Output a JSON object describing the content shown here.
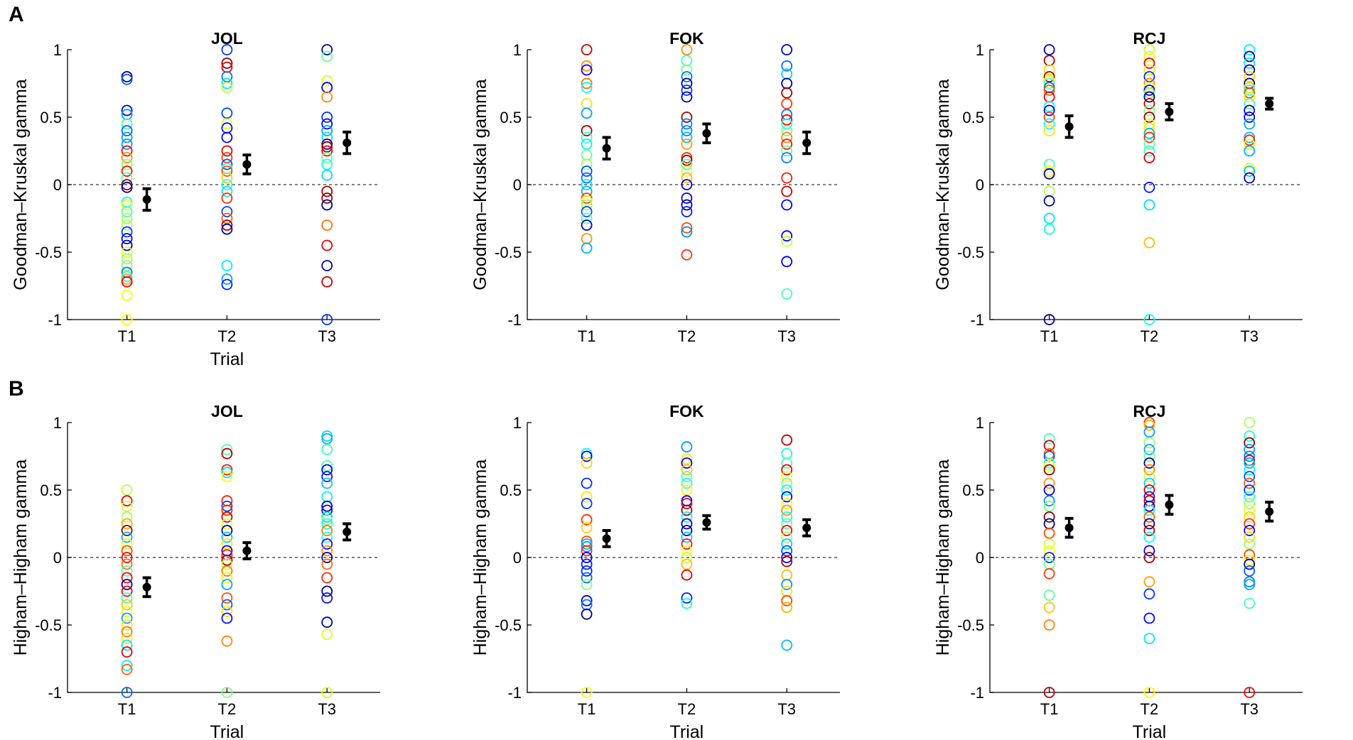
{
  "panels": [
    {
      "letter": "A"
    },
    {
      "letter": "B"
    }
  ],
  "chart_data": [
    {
      "type": "scatter",
      "title": "JOL",
      "xlabel": "Trial",
      "ylabel": "Goodman–Kruskal gamma",
      "categories": [
        "T1",
        "T2",
        "T3"
      ],
      "ylim": [
        -1,
        1
      ],
      "yticks": [
        -1,
        -0.5,
        0,
        0.5,
        1
      ],
      "reference_line": 0,
      "points": [
        [
          0.8,
          0.78,
          0.55,
          0.52,
          0.45,
          0.4,
          0.35,
          0.3,
          0.25,
          0.2,
          0.15,
          0.1,
          0.05,
          0.0,
          -0.02,
          -0.13,
          -0.15,
          -0.2,
          -0.25,
          -0.3,
          -0.35,
          -0.4,
          -0.45,
          -0.5,
          -0.55,
          -0.6,
          -0.65,
          -0.68,
          -0.7,
          -0.72,
          -0.82,
          -1.0
        ],
        [
          1.0,
          0.9,
          0.87,
          0.8,
          0.75,
          0.72,
          0.53,
          0.45,
          0.42,
          0.35,
          0.25,
          0.2,
          0.15,
          0.12,
          0.1,
          0.05,
          0.0,
          -0.05,
          -0.1,
          -0.2,
          -0.25,
          -0.3,
          -0.33,
          -0.6,
          -0.7,
          -0.74
        ],
        [
          1.0,
          0.95,
          0.77,
          0.72,
          0.65,
          0.5,
          0.45,
          0.4,
          0.35,
          0.3,
          0.28,
          0.25,
          0.2,
          0.15,
          0.07,
          -0.05,
          -0.1,
          -0.15,
          -0.3,
          -0.45,
          -0.6,
          -0.72,
          -1.0
        ]
      ],
      "means": [
        -0.11,
        0.15,
        0.31
      ],
      "errors": [
        0.08,
        0.07,
        0.08
      ]
    },
    {
      "type": "scatter",
      "title": "FOK",
      "xlabel": "",
      "ylabel": "Goodman–Kruskal gamma",
      "categories": [
        "T1",
        "T2",
        "T3"
      ],
      "ylim": [
        -1,
        1
      ],
      "yticks": [
        -1,
        -0.5,
        0,
        0.5,
        1
      ],
      "reference_line": 0,
      "points": [
        [
          1.0,
          0.88,
          0.85,
          0.75,
          0.72,
          0.6,
          0.53,
          0.4,
          0.35,
          0.3,
          0.22,
          0.15,
          0.1,
          0.05,
          0.0,
          -0.05,
          -0.1,
          -0.12,
          -0.15,
          -0.2,
          -0.25,
          -0.3,
          -0.4,
          -0.47
        ],
        [
          1.0,
          0.92,
          0.85,
          0.8,
          0.75,
          0.7,
          0.65,
          0.5,
          0.45,
          0.4,
          0.35,
          0.3,
          0.2,
          0.18,
          0.15,
          0.1,
          0.05,
          0.0,
          -0.1,
          -0.15,
          -0.2,
          -0.32,
          -0.35,
          -0.52
        ],
        [
          1.0,
          0.88,
          0.82,
          0.75,
          0.68,
          0.6,
          0.52,
          0.48,
          0.45,
          0.4,
          0.35,
          0.3,
          0.25,
          0.2,
          0.05,
          -0.05,
          -0.15,
          -0.38,
          -0.42,
          -0.57,
          -0.81
        ]
      ],
      "means": [
        0.27,
        0.38,
        0.31
      ],
      "errors": [
        0.08,
        0.07,
        0.08
      ]
    },
    {
      "type": "scatter",
      "title": "RCJ",
      "xlabel": "",
      "ylabel": "Goodman–Kruskal gamma",
      "categories": [
        "T1",
        "T2",
        "T3"
      ],
      "ylim": [
        -1,
        1
      ],
      "yticks": [
        -1,
        -0.5,
        0,
        0.5,
        1
      ],
      "reference_line": 0,
      "points": [
        [
          1.0,
          0.92,
          0.85,
          0.8,
          0.77,
          0.75,
          0.72,
          0.7,
          0.65,
          0.58,
          0.55,
          0.5,
          0.45,
          0.4,
          0.15,
          0.1,
          0.08,
          -0.05,
          -0.12,
          -0.25,
          -0.33,
          -1.0
        ],
        [
          1.0,
          0.95,
          0.9,
          0.85,
          0.8,
          0.75,
          0.72,
          0.7,
          0.68,
          0.65,
          0.6,
          0.55,
          0.5,
          0.45,
          0.42,
          0.38,
          0.35,
          0.3,
          0.25,
          0.2,
          -0.02,
          -0.15,
          -0.43,
          -1.0
        ],
        [
          1.0,
          0.95,
          0.9,
          0.85,
          0.8,
          0.75,
          0.72,
          0.7,
          0.68,
          0.65,
          0.6,
          0.55,
          0.5,
          0.45,
          0.35,
          0.33,
          0.3,
          0.25,
          0.12,
          0.1,
          0.05
        ]
      ],
      "means": [
        0.43,
        0.54,
        0.6
      ],
      "errors": [
        0.08,
        0.06,
        0.04
      ]
    },
    {
      "type": "scatter",
      "title": "JOL",
      "xlabel": "Trial",
      "ylabel": "Higham–Higham gamma",
      "categories": [
        "T1",
        "T2",
        "T3"
      ],
      "ylim": [
        -1,
        1
      ],
      "yticks": [
        -1,
        -0.5,
        0,
        0.5,
        1
      ],
      "reference_line": 0,
      "points": [
        [
          0.5,
          0.42,
          0.38,
          0.3,
          0.25,
          0.2,
          0.15,
          0.1,
          0.05,
          0.0,
          -0.05,
          -0.1,
          -0.15,
          -0.2,
          -0.25,
          -0.3,
          -0.35,
          -0.4,
          -0.45,
          -0.5,
          -0.55,
          -0.6,
          -0.65,
          -0.7,
          -0.8,
          -0.83,
          -1.0
        ],
        [
          0.8,
          0.77,
          0.65,
          0.63,
          0.6,
          0.42,
          0.38,
          0.35,
          0.3,
          0.25,
          0.2,
          0.15,
          0.1,
          0.05,
          0.02,
          -0.02,
          -0.05,
          -0.1,
          -0.15,
          -0.2,
          -0.3,
          -0.35,
          -0.4,
          -0.45,
          -0.62,
          -1.0
        ],
        [
          0.9,
          0.88,
          0.8,
          0.68,
          0.65,
          0.6,
          0.55,
          0.45,
          0.38,
          0.35,
          0.3,
          0.28,
          0.25,
          0.2,
          0.15,
          0.1,
          0.05,
          0.0,
          -0.05,
          -0.15,
          -0.25,
          -0.3,
          -0.48,
          -0.57,
          -1.0
        ]
      ],
      "means": [
        -0.22,
        0.05,
        0.19
      ],
      "errors": [
        0.07,
        0.06,
        0.06
      ]
    },
    {
      "type": "scatter",
      "title": "FOK",
      "xlabel": "Trial",
      "ylabel": "Higham–Higham gamma",
      "categories": [
        "T1",
        "T2",
        "T3"
      ],
      "ylim": [
        -1,
        1
      ],
      "yticks": [
        -1,
        -0.5,
        0,
        0.5,
        1
      ],
      "reference_line": 0,
      "points": [
        [
          0.77,
          0.75,
          0.7,
          0.55,
          0.45,
          0.4,
          0.28,
          0.22,
          0.12,
          0.1,
          0.08,
          0.05,
          0.0,
          -0.05,
          -0.1,
          -0.15,
          -0.2,
          -0.32,
          -0.35,
          -0.42,
          -1.0
        ],
        [
          0.82,
          0.73,
          0.7,
          0.65,
          0.6,
          0.55,
          0.5,
          0.42,
          0.4,
          0.35,
          0.3,
          0.25,
          0.2,
          0.15,
          0.1,
          0.05,
          0.0,
          -0.05,
          -0.13,
          -0.3,
          -0.34
        ],
        [
          0.87,
          0.77,
          0.7,
          0.65,
          0.6,
          0.55,
          0.5,
          0.45,
          0.4,
          0.35,
          0.3,
          0.25,
          0.2,
          0.15,
          0.1,
          0.05,
          0.0,
          -0.03,
          -0.13,
          -0.2,
          -0.25,
          -0.32,
          -0.37,
          -0.65
        ]
      ],
      "means": [
        0.14,
        0.26,
        0.22
      ],
      "errors": [
        0.06,
        0.05,
        0.06
      ]
    },
    {
      "type": "scatter",
      "title": "RCJ",
      "xlabel": "Trial",
      "ylabel": "Higham–Higham gamma",
      "categories": [
        "T1",
        "T2",
        "T3"
      ],
      "ylim": [
        -1,
        1
      ],
      "yticks": [
        -1,
        -0.5,
        0,
        0.5,
        1
      ],
      "reference_line": 0,
      "points": [
        [
          0.88,
          0.83,
          0.77,
          0.75,
          0.7,
          0.68,
          0.65,
          0.55,
          0.5,
          0.42,
          0.38,
          0.3,
          0.25,
          0.18,
          0.1,
          0.05,
          0.0,
          -0.05,
          -0.12,
          -0.28,
          -0.37,
          -0.5,
          -1.0
        ],
        [
          1.0,
          0.98,
          0.93,
          0.85,
          0.8,
          0.75,
          0.7,
          0.65,
          0.6,
          0.55,
          0.5,
          0.45,
          0.42,
          0.38,
          0.35,
          0.3,
          0.25,
          0.2,
          0.15,
          0.05,
          0.0,
          -0.18,
          -0.27,
          -0.45,
          -0.6,
          -1.0
        ],
        [
          1.0,
          0.9,
          0.85,
          0.8,
          0.75,
          0.72,
          0.7,
          0.65,
          0.6,
          0.55,
          0.5,
          0.45,
          0.4,
          0.35,
          0.3,
          0.25,
          0.2,
          0.15,
          0.1,
          0.02,
          -0.02,
          -0.05,
          -0.1,
          -0.18,
          -0.2,
          -0.34,
          -1.0
        ]
      ],
      "means": [
        0.22,
        0.39,
        0.34
      ],
      "errors": [
        0.07,
        0.07,
        0.07
      ]
    }
  ]
}
